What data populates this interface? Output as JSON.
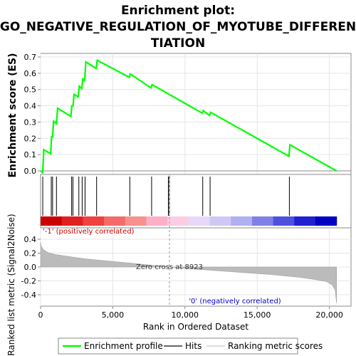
{
  "title_line1": "Enrichment plot:",
  "title_line2": "GO_NEGATIVE_REGULATION_OF_MYOTUBE_DIFFEREN",
  "title_line3": "TIATION",
  "chart_data": [
    {
      "type": "line",
      "name": "enrichment-profile-panel",
      "ylabel": "Enrichment score (ES)",
      "ylim": [
        -0.02,
        0.7
      ],
      "xlim": [
        0,
        21500
      ],
      "yticks": [
        "0.0",
        "0.1",
        "0.2",
        "0.3",
        "0.4",
        "0.5",
        "0.6",
        "0.7"
      ],
      "ytick_values": [
        0,
        0.1,
        0.2,
        0.3,
        0.4,
        0.5,
        0.6,
        0.7
      ],
      "grid": true,
      "series": [
        {
          "name": "Enrichment profile",
          "color": "#00ff00",
          "x": [
            0,
            150,
            220,
            700,
            760,
            830,
            900,
            1100,
            1180,
            2100,
            2160,
            2250,
            2320,
            2600,
            2680,
            2850,
            2930,
            3050,
            3130,
            3850,
            3920,
            6150,
            6220,
            7650,
            7720,
            11200,
            11270,
            11700,
            11770,
            17200,
            17270,
            20500
          ],
          "y": [
            0.0,
            -0.01,
            0.13,
            0.105,
            0.21,
            0.21,
            0.305,
            0.29,
            0.385,
            0.335,
            0.4,
            0.4,
            0.47,
            0.455,
            0.52,
            0.505,
            0.565,
            0.555,
            0.67,
            0.63,
            0.68,
            0.575,
            0.595,
            0.51,
            0.53,
            0.355,
            0.37,
            0.34,
            0.36,
            0.09,
            0.16,
            0.0
          ]
        }
      ]
    },
    {
      "type": "scatter",
      "name": "hits-panel",
      "series": [
        {
          "name": "Hits",
          "color": "#000000",
          "x": [
            150,
            740,
            830,
            1100,
            2150,
            2240,
            2650,
            2880,
            3080,
            3880,
            6180,
            7690,
            8850,
            8920,
            11230,
            11740,
            17230
          ]
        }
      ],
      "colorbar": [
        "#cc0000",
        "#e02020",
        "#f04040",
        "#f46a6a",
        "#f89090",
        "#fbb0c8",
        "#fccce4",
        "#e8d8f8",
        "#d0c8f4",
        "#b0b0f0",
        "#8080e8",
        "#5050e0",
        "#2020d0",
        "#0000c0"
      ]
    },
    {
      "type": "area",
      "name": "ranked-list-panel",
      "xlabel": "Rank in Ordered Dataset",
      "ylabel": "Ranked list metric (Signal2Noise)",
      "xlim": [
        0,
        21500
      ],
      "ylim": [
        -0.53,
        0.5
      ],
      "xticks": [
        "0",
        "5,000",
        "10,000",
        "15,000",
        "20,000"
      ],
      "xtick_values": [
        0,
        5000,
        10000,
        15000,
        20000
      ],
      "yticks": [
        "0.4",
        "0.2",
        "0.0",
        "-0.2",
        "-0.4"
      ],
      "ytick_values": [
        0.4,
        0.2,
        0.0,
        -0.2,
        -0.4
      ],
      "fill_color": "#bbbbbb",
      "series": [
        {
          "name": "Ranking metric scores",
          "x": [
            0,
            50,
            200,
            500,
            1000,
            2000,
            3000,
            4000,
            5000,
            6000,
            7000,
            8000,
            8923,
            10000,
            12000,
            14000,
            16000,
            17000,
            18000,
            19000,
            19800,
            20200,
            20400,
            20500
          ],
          "y": [
            0.36,
            0.3,
            0.25,
            0.21,
            0.18,
            0.15,
            0.12,
            0.1,
            0.08,
            0.06,
            0.04,
            0.02,
            0.0,
            -0.02,
            -0.05,
            -0.08,
            -0.11,
            -0.13,
            -0.15,
            -0.18,
            -0.21,
            -0.26,
            -0.33,
            -0.52
          ]
        }
      ],
      "zero_cross_label": "Zero cross at 8923",
      "zero_cross_x": 8923,
      "positive_label": "'-1' (positively correlated)",
      "negative_label": "'0' (negatively correlated)"
    }
  ],
  "legend": {
    "items": [
      {
        "label": "Enrichment profile",
        "color": "#00ff00"
      },
      {
        "label": "Hits",
        "color": "#666666"
      },
      {
        "label": "Ranking metric scores",
        "color": "#dddddd"
      }
    ]
  }
}
